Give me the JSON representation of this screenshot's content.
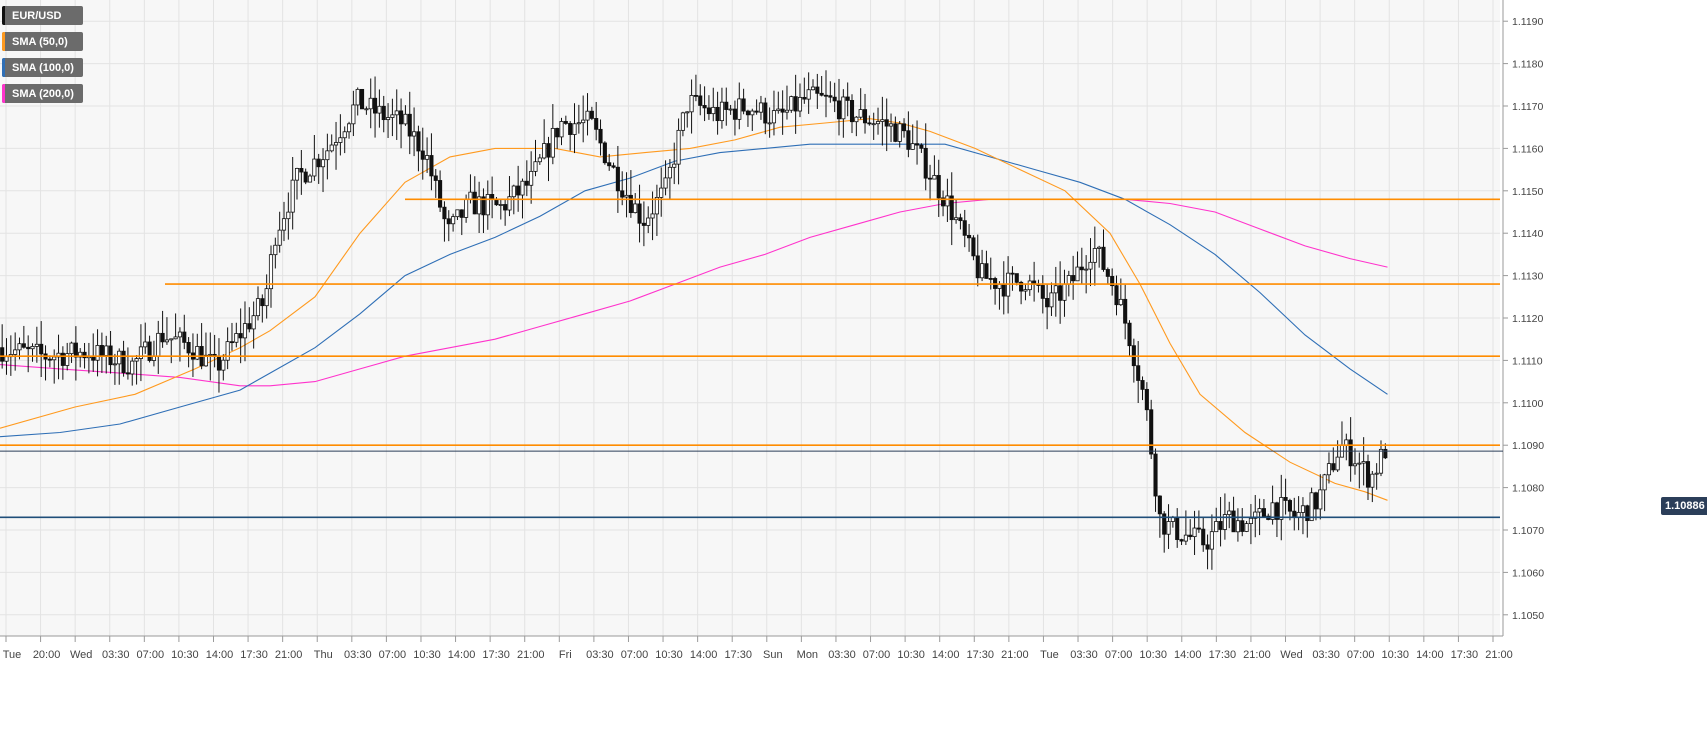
{
  "legend": {
    "items": [
      {
        "label": "EUR/USD",
        "color": "#1a1a1a"
      },
      {
        "label": "SMA (50,0)",
        "color": "#ff9a1f"
      },
      {
        "label": "SMA (100,0)",
        "color": "#2f6fb6"
      },
      {
        "label": "SMA (200,0)",
        "color": "#ff33cc"
      }
    ]
  },
  "price_badge": "1.10886",
  "chart_data": {
    "type": "candlestick",
    "symbol": "EUR/USD",
    "ylim": [
      1.1045,
      1.1195
    ],
    "yticks": [
      "1.1050",
      "1.1060",
      "1.1070",
      "1.1080",
      "1.1090",
      "1.1100",
      "1.1110",
      "1.1120",
      "1.1130",
      "1.1140",
      "1.1150",
      "1.1160",
      "1.1170",
      "1.1180",
      "1.1190"
    ],
    "xticks": [
      "Tue",
      "20:00",
      "Wed",
      "03:30",
      "07:00",
      "10:30",
      "14:00",
      "17:30",
      "21:00",
      "Thu",
      "03:30",
      "07:00",
      "10:30",
      "14:00",
      "17:30",
      "21:00",
      "Fri",
      "03:30",
      "07:00",
      "10:30",
      "14:00",
      "17:30",
      "Sun",
      "Mon",
      "03:30",
      "07:00",
      "10:30",
      "14:00",
      "17:30",
      "21:00",
      "Tue",
      "03:30",
      "07:00",
      "10:30",
      "14:00",
      "17:30",
      "21:00",
      "Wed",
      "03:30",
      "07:00",
      "10:30",
      "14:00",
      "17:30",
      "21:00"
    ],
    "grid": true,
    "last_price": 1.10886,
    "horizontal_levels": [
      {
        "price": 1.1148,
        "color": "#ff8c00",
        "start_index": 0.27
      },
      {
        "price": 1.1128,
        "color": "#ff8c00",
        "start_index": 0.11
      },
      {
        "price": 1.1111,
        "color": "#ff8c00",
        "start_index": 0
      },
      {
        "price": 1.109,
        "color": "#ff8c00",
        "start_index": 0
      },
      {
        "price": 1.1073,
        "color": "#1f4e79",
        "start_index": 0
      }
    ],
    "price_path_anchors": [
      [
        0.0,
        1.1113
      ],
      [
        0.03,
        1.1111
      ],
      [
        0.06,
        1.1112
      ],
      [
        0.09,
        1.1109
      ],
      [
        0.11,
        1.1116
      ],
      [
        0.13,
        1.1113
      ],
      [
        0.145,
        1.1108
      ],
      [
        0.165,
        1.1118
      ],
      [
        0.178,
        1.1124
      ],
      [
        0.185,
        1.114
      ],
      [
        0.2,
        1.1153
      ],
      [
        0.22,
        1.116
      ],
      [
        0.24,
        1.1171
      ],
      [
        0.255,
        1.1168
      ],
      [
        0.27,
        1.1166
      ],
      [
        0.285,
        1.1159
      ],
      [
        0.3,
        1.114
      ],
      [
        0.315,
        1.1147
      ],
      [
        0.335,
        1.1146
      ],
      [
        0.355,
        1.1152
      ],
      [
        0.375,
        1.1166
      ],
      [
        0.395,
        1.1166
      ],
      [
        0.41,
        1.1155
      ],
      [
        0.43,
        1.1143
      ],
      [
        0.445,
        1.115
      ],
      [
        0.46,
        1.1171
      ],
      [
        0.48,
        1.1168
      ],
      [
        0.5,
        1.117
      ],
      [
        0.52,
        1.1167
      ],
      [
        0.54,
        1.1172
      ],
      [
        0.555,
        1.1171
      ],
      [
        0.57,
        1.1168
      ],
      [
        0.59,
        1.1166
      ],
      [
        0.605,
        1.1163
      ],
      [
        0.62,
        1.1155
      ],
      [
        0.635,
        1.1146
      ],
      [
        0.645,
        1.1138
      ],
      [
        0.655,
        1.113
      ],
      [
        0.67,
        1.1128
      ],
      [
        0.685,
        1.1129
      ],
      [
        0.7,
        1.1123
      ],
      [
        0.715,
        1.1128
      ],
      [
        0.73,
        1.1137
      ],
      [
        0.745,
        1.1127
      ],
      [
        0.755,
        1.1115
      ],
      [
        0.765,
        1.11
      ],
      [
        0.775,
        1.1072
      ],
      [
        0.79,
        1.1069
      ],
      [
        0.805,
        1.1067
      ],
      [
        0.82,
        1.1073
      ],
      [
        0.835,
        1.1071
      ],
      [
        0.85,
        1.1076
      ],
      [
        0.865,
        1.1073
      ],
      [
        0.88,
        1.1077
      ],
      [
        0.895,
        1.109
      ],
      [
        0.905,
        1.1087
      ],
      [
        0.915,
        1.1082
      ],
      [
        0.925,
        1.1089
      ]
    ],
    "sma_50": [
      [
        0.0,
        1.1094
      ],
      [
        0.05,
        1.1099
      ],
      [
        0.09,
        1.1102
      ],
      [
        0.13,
        1.1108
      ],
      [
        0.16,
        1.1113
      ],
      [
        0.18,
        1.1117
      ],
      [
        0.21,
        1.1125
      ],
      [
        0.24,
        1.114
      ],
      [
        0.27,
        1.1152
      ],
      [
        0.3,
        1.1158
      ],
      [
        0.33,
        1.116
      ],
      [
        0.37,
        1.116
      ],
      [
        0.4,
        1.1158
      ],
      [
        0.43,
        1.1159
      ],
      [
        0.46,
        1.116
      ],
      [
        0.49,
        1.1162
      ],
      [
        0.52,
        1.1165
      ],
      [
        0.55,
        1.1166
      ],
      [
        0.58,
        1.1167
      ],
      [
        0.6,
        1.1166
      ],
      [
        0.62,
        1.1164
      ],
      [
        0.65,
        1.116
      ],
      [
        0.68,
        1.1155
      ],
      [
        0.71,
        1.115
      ],
      [
        0.74,
        1.114
      ],
      [
        0.76,
        1.1128
      ],
      [
        0.78,
        1.1114
      ],
      [
        0.8,
        1.1102
      ],
      [
        0.83,
        1.1093
      ],
      [
        0.86,
        1.1086
      ],
      [
        0.89,
        1.1081
      ],
      [
        0.91,
        1.1079
      ],
      [
        0.925,
        1.1077
      ]
    ],
    "sma_100": [
      [
        0.0,
        1.1092
      ],
      [
        0.04,
        1.1093
      ],
      [
        0.08,
        1.1095
      ],
      [
        0.12,
        1.1099
      ],
      [
        0.16,
        1.1103
      ],
      [
        0.18,
        1.1107
      ],
      [
        0.21,
        1.1113
      ],
      [
        0.24,
        1.1121
      ],
      [
        0.27,
        1.113
      ],
      [
        0.3,
        1.1135
      ],
      [
        0.33,
        1.1139
      ],
      [
        0.36,
        1.1144
      ],
      [
        0.39,
        1.115
      ],
      [
        0.42,
        1.1153
      ],
      [
        0.45,
        1.1157
      ],
      [
        0.48,
        1.1159
      ],
      [
        0.51,
        1.116
      ],
      [
        0.54,
        1.1161
      ],
      [
        0.57,
        1.1161
      ],
      [
        0.6,
        1.1161
      ],
      [
        0.63,
        1.1161
      ],
      [
        0.66,
        1.1158
      ],
      [
        0.69,
        1.1155
      ],
      [
        0.72,
        1.1152
      ],
      [
        0.75,
        1.1148
      ],
      [
        0.78,
        1.1142
      ],
      [
        0.81,
        1.1135
      ],
      [
        0.84,
        1.1126
      ],
      [
        0.87,
        1.1116
      ],
      [
        0.9,
        1.1108
      ],
      [
        0.925,
        1.1102
      ]
    ],
    "sma_200": [
      [
        0.0,
        1.1109
      ],
      [
        0.04,
        1.1108
      ],
      [
        0.08,
        1.1107
      ],
      [
        0.12,
        1.1106
      ],
      [
        0.16,
        1.1104
      ],
      [
        0.18,
        1.1104
      ],
      [
        0.21,
        1.1105
      ],
      [
        0.24,
        1.1108
      ],
      [
        0.27,
        1.1111
      ],
      [
        0.3,
        1.1113
      ],
      [
        0.33,
        1.1115
      ],
      [
        0.36,
        1.1118
      ],
      [
        0.39,
        1.1121
      ],
      [
        0.42,
        1.1124
      ],
      [
        0.45,
        1.1128
      ],
      [
        0.48,
        1.1132
      ],
      [
        0.51,
        1.1135
      ],
      [
        0.54,
        1.1139
      ],
      [
        0.57,
        1.1142
      ],
      [
        0.6,
        1.1145
      ],
      [
        0.63,
        1.1147
      ],
      [
        0.66,
        1.1148
      ],
      [
        0.69,
        1.1148
      ],
      [
        0.72,
        1.1148
      ],
      [
        0.75,
        1.1148
      ],
      [
        0.78,
        1.1147
      ],
      [
        0.81,
        1.1145
      ],
      [
        0.84,
        1.1141
      ],
      [
        0.87,
        1.1137
      ],
      [
        0.9,
        1.1134
      ],
      [
        0.925,
        1.1132
      ]
    ]
  }
}
